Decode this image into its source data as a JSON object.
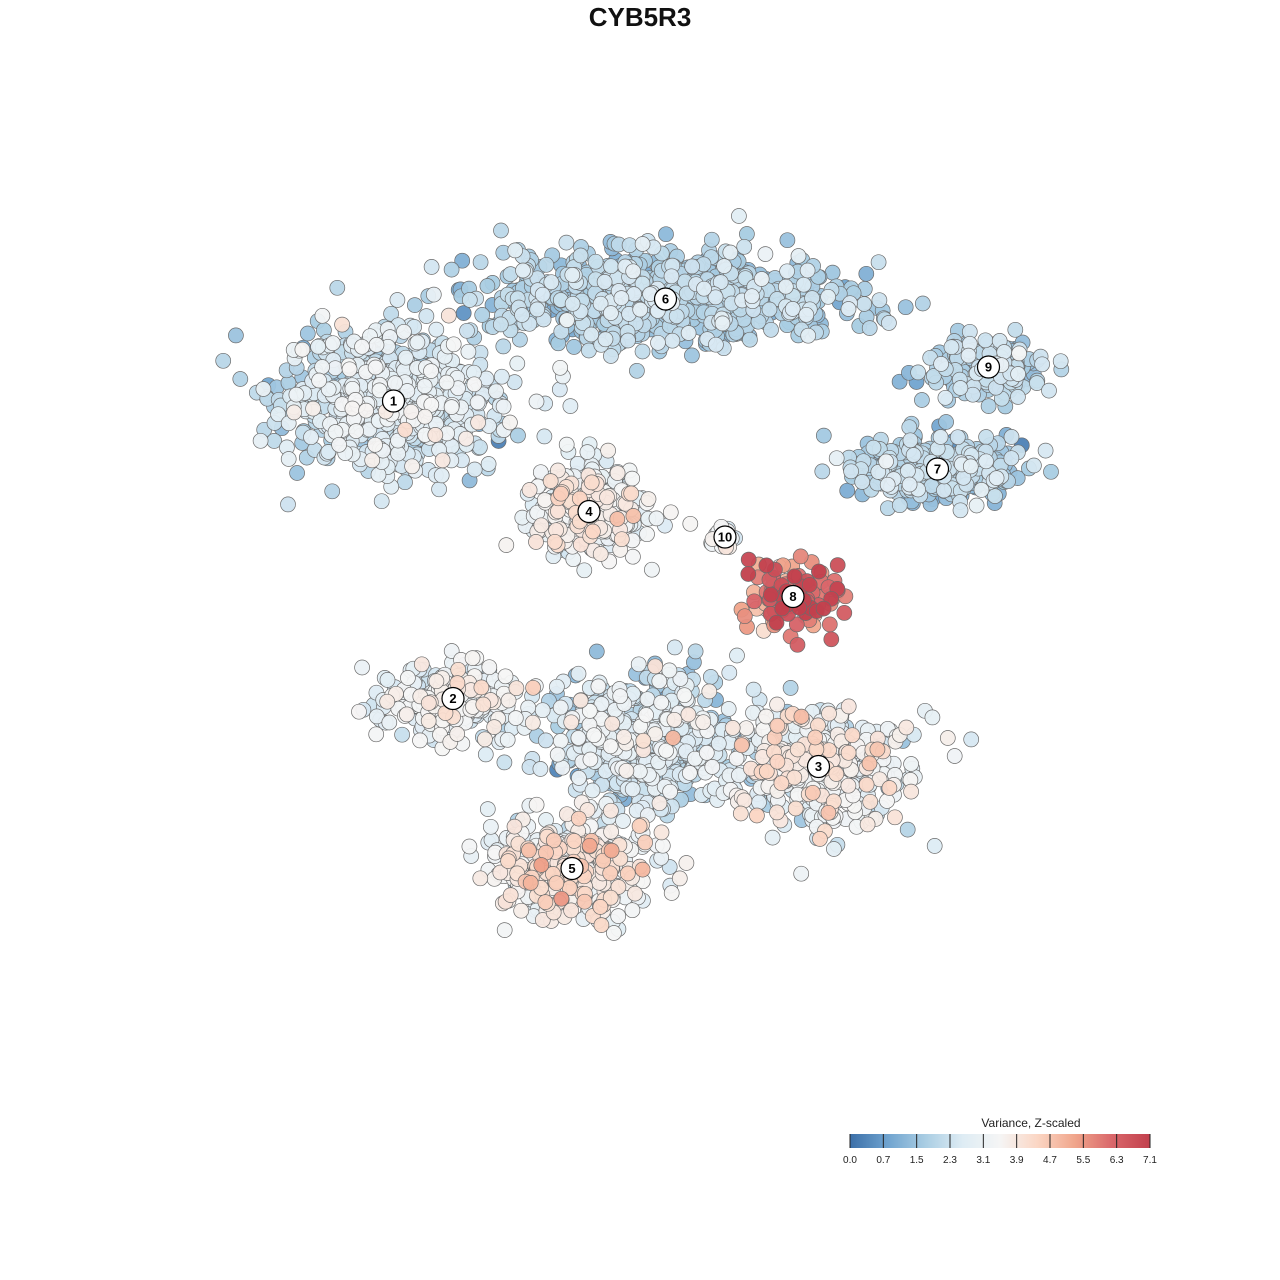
{
  "chart_data": {
    "type": "scatter",
    "title": "CYB5R3",
    "xlabel": "",
    "ylabel": "",
    "grid": false,
    "color_scale": {
      "title": "Variance, Z-scaled",
      "min": 0.0,
      "max": 7.1,
      "ticks": [
        "0.0",
        "0.7",
        "1.5",
        "2.3",
        "3.1",
        "3.9",
        "4.7",
        "5.5",
        "6.3",
        "7.1"
      ],
      "colors": [
        "#3b6fa8",
        "#6fa3cf",
        "#a9cde3",
        "#deecf4",
        "#f5f5f5",
        "#fbd6c4",
        "#f0a58b",
        "#d9666a",
        "#c2404d"
      ],
      "placement": "bottom-right"
    },
    "clusters": [
      {
        "label": "1",
        "x": -14.5,
        "y": 12.0,
        "spread_x": 7.0,
        "spread_y": 4.5,
        "n": 700,
        "mean": 2.5,
        "sd": 0.55
      },
      {
        "label": "2",
        "x": -11.0,
        "y": -5.5,
        "spread_x": 5.0,
        "spread_y": 2.5,
        "n": 260,
        "mean": 3.0,
        "sd": 0.55
      },
      {
        "label": "3",
        "x": 10.5,
        "y": -9.5,
        "spread_x": 6.0,
        "spread_y": 3.5,
        "n": 480,
        "mean": 3.1,
        "sd": 0.75
      },
      {
        "label": "4",
        "x": -3.0,
        "y": 5.5,
        "spread_x": 3.5,
        "spread_y": 3.0,
        "n": 330,
        "mean": 3.2,
        "sd": 0.6
      },
      {
        "label": "5",
        "x": -4.0,
        "y": -15.5,
        "spread_x": 5.0,
        "spread_y": 3.0,
        "n": 480,
        "mean": 3.5,
        "sd": 0.6
      },
      {
        "label": "6",
        "x": 1.5,
        "y": 18.0,
        "spread_x": 12.0,
        "spread_y": 3.0,
        "n": 850,
        "mean": 1.9,
        "sd": 0.45
      },
      {
        "label": "7",
        "x": 17.5,
        "y": 8.0,
        "spread_x": 5.5,
        "spread_y": 2.0,
        "n": 420,
        "mean": 1.8,
        "sd": 0.5
      },
      {
        "label": "8",
        "x": 9.0,
        "y": 0.5,
        "spread_x": 3.0,
        "spread_y": 2.2,
        "n": 140,
        "mean": 5.8,
        "sd": 1.0
      },
      {
        "label": "9",
        "x": 20.5,
        "y": 14.0,
        "spread_x": 3.5,
        "spread_y": 2.0,
        "n": 200,
        "mean": 1.9,
        "sd": 0.45
      },
      {
        "label": "10",
        "x": 5.0,
        "y": 4.0,
        "spread_x": 1.0,
        "spread_y": 0.9,
        "n": 30,
        "mean": 3.3,
        "sd": 0.4
      }
    ],
    "bridge_region": {
      "x": 0.0,
      "y": -8.0,
      "spread_x": 6.0,
      "spread_y": 4.0,
      "n": 600,
      "mean": 2.3,
      "sd": 0.7
    },
    "x_range": [
      -30,
      30
    ],
    "y_range": [
      -30,
      30
    ]
  }
}
